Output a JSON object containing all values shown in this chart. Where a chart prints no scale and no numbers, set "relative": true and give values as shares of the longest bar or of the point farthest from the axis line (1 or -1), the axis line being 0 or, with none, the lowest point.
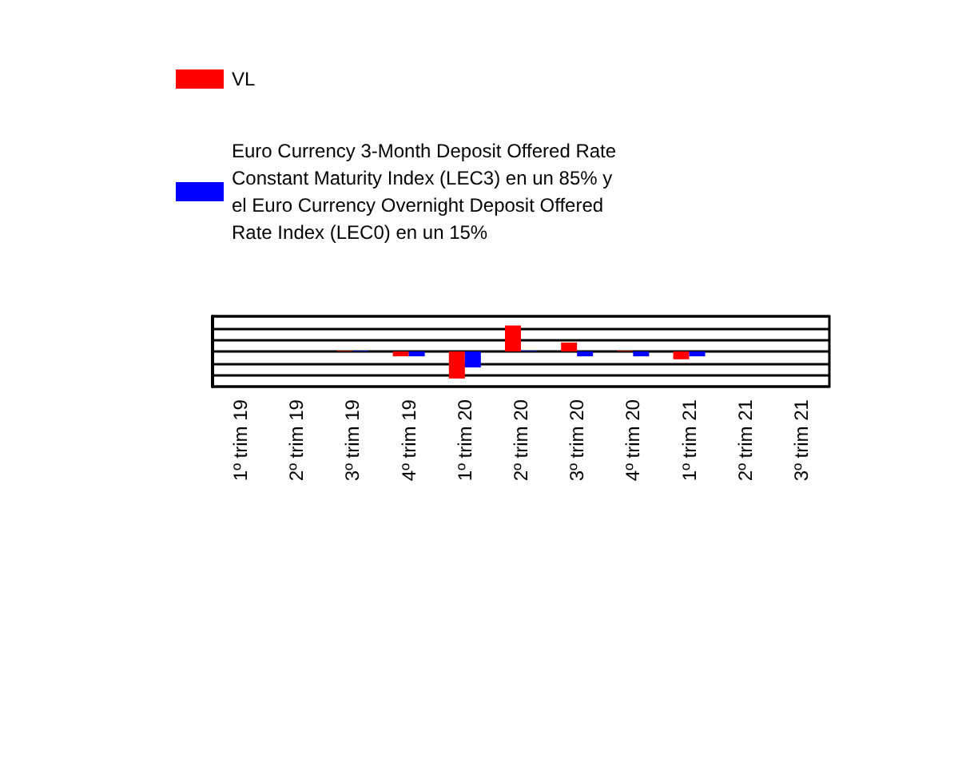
{
  "chart_data": {
    "type": "bar",
    "relative": true,
    "categories": [
      "1º trim 19",
      "2º trim 19",
      "3º trim 19",
      "4º trim 19",
      "1º trim 20",
      "2º trim 20",
      "3º trim 20",
      "4º trim 20",
      "1º trim 21",
      "2º trim 21",
      "3º trim 21"
    ],
    "series": [
      {
        "name": "VL",
        "color": "#ff0000",
        "values": [
          null,
          null,
          0.02,
          -0.18,
          -1,
          0.96,
          0.33,
          0.02,
          -0.29,
          null,
          null
        ]
      },
      {
        "name": "Euro Currency 3-Month Deposit Offered Rate Constant Maturity Index (LEC3) en un 85% y el Euro Currency Overnight Deposit Offered Rate Index (LEC0) en un 15%",
        "color": "#0000ff",
        "values": [
          null,
          null,
          0.02,
          -0.18,
          -0.59,
          0.02,
          -0.18,
          -0.18,
          -0.18,
          null,
          null
        ]
      }
    ],
    "grid": "y",
    "legend": "top"
  }
}
